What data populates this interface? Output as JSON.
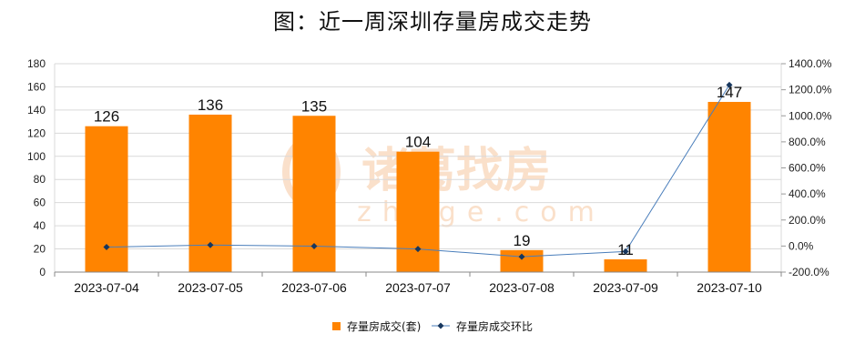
{
  "title": "图：近一周深圳存量房成交走势",
  "watermark": {
    "brand": "诸葛找房",
    "domain": "zhuge.com"
  },
  "colors": {
    "bar": "#FF8400",
    "line": "#4A7EBB",
    "marker": "#17375E",
    "grid": "#D9D9D9",
    "watermark": "#F6C7A0"
  },
  "chart_data": {
    "type": "bar",
    "categories": [
      "2023-07-04",
      "2023-07-05",
      "2023-07-06",
      "2023-07-07",
      "2023-07-08",
      "2023-07-09",
      "2023-07-10"
    ],
    "series": [
      {
        "name": "存量房成交(套)",
        "type": "bar",
        "axis": "left",
        "values": [
          126,
          136,
          135,
          104,
          19,
          11,
          147
        ]
      },
      {
        "name": "存量房成交环比",
        "type": "line",
        "axis": "right",
        "values": [
          -8.0,
          7.9,
          -0.7,
          -23.0,
          -81.7,
          -42.1,
          1236.4
        ]
      }
    ],
    "y_left": {
      "min": 0,
      "max": 180,
      "step": 20
    },
    "y_right": {
      "min": -200,
      "max": 1400,
      "step": 200,
      "format": "percent"
    },
    "data_labels": [
      "126",
      "136",
      "135",
      "104",
      "19",
      "11",
      "147"
    ],
    "grid": true,
    "legend": "bottom-center"
  }
}
